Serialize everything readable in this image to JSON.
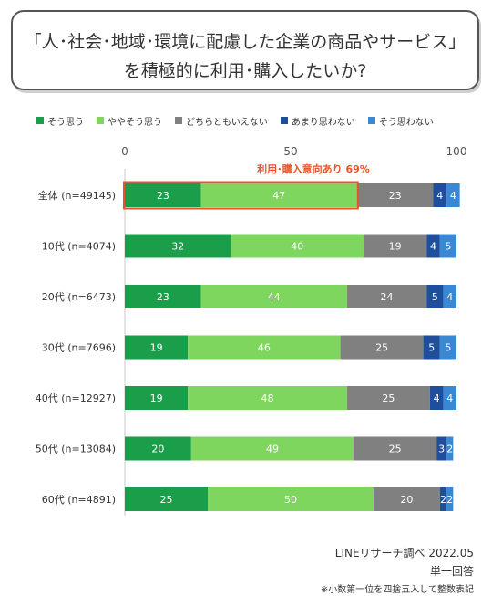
{
  "title": {
    "line1": "「人･社会･地域･環境に配慮した企業の商品やサービス」",
    "line2": "を積極的に利用･購入したいか?"
  },
  "legend": [
    {
      "label": "そう思う",
      "color": "#1a9e4a"
    },
    {
      "label": "ややそう思う",
      "color": "#7ed65f"
    },
    {
      "label": "どちらともいえない",
      "color": "#808080"
    },
    {
      "label": "あまり思わない",
      "color": "#1f4e9c"
    },
    {
      "label": "そう思わない",
      "color": "#3a87d4"
    }
  ],
  "chart_data": {
    "type": "bar",
    "orientation": "horizontal",
    "stacked": true,
    "xlim": [
      0,
      100
    ],
    "xticks": [
      "0",
      "50",
      "100"
    ],
    "categories": [
      "全体 (n=49145)",
      "10代 (n=4074)",
      "20代 (n=6473)",
      "30代 (n=7696)",
      "40代 (n=12927)",
      "50代 (n=13084)",
      "60代 (n=4891)"
    ],
    "series": [
      {
        "name": "そう思う",
        "color": "#1a9e4a",
        "values": [
          23,
          32,
          23,
          19,
          19,
          20,
          25
        ]
      },
      {
        "name": "ややそう思う",
        "color": "#7ed65f",
        "values": [
          47,
          40,
          44,
          46,
          48,
          49,
          50
        ]
      },
      {
        "name": "どちらともいえない",
        "color": "#808080",
        "values": [
          23,
          19,
          24,
          25,
          25,
          25,
          20
        ]
      },
      {
        "name": "あまり思わない",
        "color": "#1f4e9c",
        "values": [
          4,
          4,
          5,
          5,
          4,
          3,
          2
        ]
      },
      {
        "name": "そう思わない",
        "color": "#3a87d4",
        "values": [
          4,
          5,
          4,
          5,
          4,
          2,
          2
        ]
      }
    ],
    "annotation": {
      "text": "利用･購入意向あり  69%",
      "color": "#e8542a",
      "highlight_row": 0,
      "highlight_series": [
        0,
        1
      ]
    }
  },
  "footer": {
    "source": "LINEリサーチ調べ 2022.05",
    "answer_type": "単一回答",
    "note": "※小数第一位を四捨五入して整数表記"
  }
}
